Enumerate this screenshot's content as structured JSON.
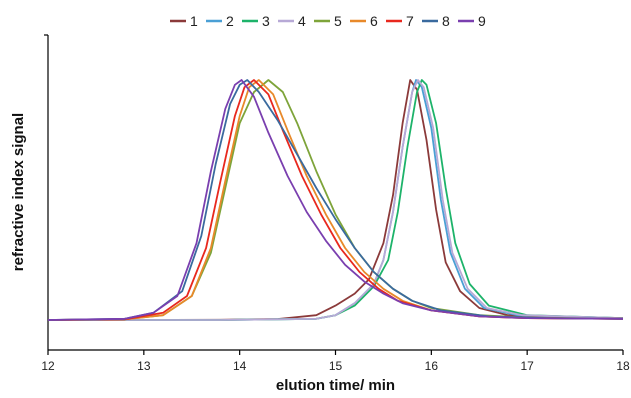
{
  "chart_data": {
    "type": "line",
    "title": "",
    "xlabel": "elution time/ min",
    "ylabel": "refractive index signal",
    "xlim": [
      12,
      18
    ],
    "ylim": [
      0,
      1.1
    ],
    "x_ticks": [
      "12",
      "13",
      "14",
      "15",
      "16",
      "17",
      "18"
    ],
    "y_tick_labels": false,
    "grid": false,
    "legend": {
      "placement": "top-center",
      "orientation": "horizontal"
    },
    "series": [
      {
        "name": "1",
        "color": "#8B3A3A",
        "points": [
          [
            12,
            0
          ],
          [
            12.8,
            0
          ],
          [
            13.8,
            0.001
          ],
          [
            14.4,
            0.004
          ],
          [
            14.8,
            0.02
          ],
          [
            15.0,
            0.06
          ],
          [
            15.2,
            0.11
          ],
          [
            15.35,
            0.17
          ],
          [
            15.5,
            0.32
          ],
          [
            15.6,
            0.52
          ],
          [
            15.7,
            0.82
          ],
          [
            15.78,
            1.0
          ],
          [
            15.85,
            0.96
          ],
          [
            15.95,
            0.75
          ],
          [
            16.05,
            0.46
          ],
          [
            16.15,
            0.24
          ],
          [
            16.3,
            0.12
          ],
          [
            16.5,
            0.05
          ],
          [
            16.8,
            0.02
          ],
          [
            17.2,
            0.01
          ],
          [
            18,
            0.008
          ]
        ]
      },
      {
        "name": "2",
        "color": "#4A9FD5",
        "points": [
          [
            12,
            0
          ],
          [
            13.8,
            0
          ],
          [
            14.8,
            0.005
          ],
          [
            15.0,
            0.02
          ],
          [
            15.2,
            0.07
          ],
          [
            15.4,
            0.15
          ],
          [
            15.5,
            0.25
          ],
          [
            15.6,
            0.45
          ],
          [
            15.7,
            0.72
          ],
          [
            15.8,
            0.95
          ],
          [
            15.84,
            1.0
          ],
          [
            15.9,
            0.97
          ],
          [
            16.0,
            0.8
          ],
          [
            16.1,
            0.5
          ],
          [
            16.2,
            0.28
          ],
          [
            16.35,
            0.13
          ],
          [
            16.55,
            0.05
          ],
          [
            16.9,
            0.02
          ],
          [
            18,
            0.008
          ]
        ]
      },
      {
        "name": "3",
        "color": "#1DB36A",
        "points": [
          [
            12,
            0
          ],
          [
            13.8,
            0
          ],
          [
            14.8,
            0.005
          ],
          [
            15.0,
            0.02
          ],
          [
            15.2,
            0.06
          ],
          [
            15.4,
            0.14
          ],
          [
            15.55,
            0.25
          ],
          [
            15.65,
            0.45
          ],
          [
            15.75,
            0.72
          ],
          [
            15.85,
            0.95
          ],
          [
            15.9,
            1.0
          ],
          [
            15.95,
            0.98
          ],
          [
            16.05,
            0.82
          ],
          [
            16.15,
            0.55
          ],
          [
            16.25,
            0.32
          ],
          [
            16.4,
            0.15
          ],
          [
            16.6,
            0.06
          ],
          [
            17.0,
            0.02
          ],
          [
            18,
            0.008
          ]
        ]
      },
      {
        "name": "4",
        "color": "#B7A9D6",
        "points": [
          [
            12,
            0
          ],
          [
            13.8,
            0
          ],
          [
            14.8,
            0.005
          ],
          [
            15.0,
            0.02
          ],
          [
            15.2,
            0.07
          ],
          [
            15.4,
            0.15
          ],
          [
            15.5,
            0.25
          ],
          [
            15.6,
            0.45
          ],
          [
            15.7,
            0.72
          ],
          [
            15.8,
            0.95
          ],
          [
            15.86,
            1.0
          ],
          [
            15.92,
            0.97
          ],
          [
            16.02,
            0.8
          ],
          [
            16.12,
            0.5
          ],
          [
            16.22,
            0.28
          ],
          [
            16.38,
            0.13
          ],
          [
            16.58,
            0.05
          ],
          [
            16.95,
            0.02
          ],
          [
            18,
            0.008
          ]
        ]
      },
      {
        "name": "5",
        "color": "#7EA43A",
        "points": [
          [
            12,
            0
          ],
          [
            12.8,
            0.003
          ],
          [
            13.2,
            0.02
          ],
          [
            13.5,
            0.1
          ],
          [
            13.7,
            0.28
          ],
          [
            13.85,
            0.55
          ],
          [
            14.0,
            0.82
          ],
          [
            14.15,
            0.95
          ],
          [
            14.3,
            1.0
          ],
          [
            14.45,
            0.95
          ],
          [
            14.6,
            0.82
          ],
          [
            14.8,
            0.62
          ],
          [
            15.0,
            0.44
          ],
          [
            15.2,
            0.3
          ],
          [
            15.4,
            0.2
          ],
          [
            15.6,
            0.13
          ],
          [
            15.8,
            0.08
          ],
          [
            16.0,
            0.05
          ],
          [
            16.5,
            0.02
          ],
          [
            17,
            0.01
          ],
          [
            18,
            0.005
          ]
        ]
      },
      {
        "name": "6",
        "color": "#E8892A",
        "points": [
          [
            12,
            0
          ],
          [
            12.8,
            0.003
          ],
          [
            13.2,
            0.02
          ],
          [
            13.5,
            0.1
          ],
          [
            13.7,
            0.3
          ],
          [
            13.85,
            0.58
          ],
          [
            14.0,
            0.85
          ],
          [
            14.1,
            0.97
          ],
          [
            14.2,
            1.0
          ],
          [
            14.35,
            0.94
          ],
          [
            14.5,
            0.79
          ],
          [
            14.7,
            0.6
          ],
          [
            14.9,
            0.44
          ],
          [
            15.1,
            0.3
          ],
          [
            15.3,
            0.2
          ],
          [
            15.5,
            0.13
          ],
          [
            15.7,
            0.08
          ],
          [
            16.0,
            0.04
          ],
          [
            16.5,
            0.015
          ],
          [
            17,
            0.008
          ],
          [
            18,
            0.005
          ]
        ]
      },
      {
        "name": "7",
        "color": "#E8281E",
        "points": [
          [
            12,
            0
          ],
          [
            12.8,
            0.003
          ],
          [
            13.2,
            0.03
          ],
          [
            13.45,
            0.1
          ],
          [
            13.65,
            0.3
          ],
          [
            13.8,
            0.58
          ],
          [
            13.95,
            0.85
          ],
          [
            14.05,
            0.97
          ],
          [
            14.15,
            1.0
          ],
          [
            14.3,
            0.94
          ],
          [
            14.45,
            0.79
          ],
          [
            14.65,
            0.6
          ],
          [
            14.85,
            0.44
          ],
          [
            15.05,
            0.3
          ],
          [
            15.25,
            0.2
          ],
          [
            15.45,
            0.13
          ],
          [
            15.65,
            0.08
          ],
          [
            16.0,
            0.04
          ],
          [
            16.5,
            0.015
          ],
          [
            17,
            0.008
          ],
          [
            18,
            0.005
          ]
        ]
      },
      {
        "name": "8",
        "color": "#3A6A9E",
        "points": [
          [
            12,
            0
          ],
          [
            12.8,
            0.005
          ],
          [
            13.1,
            0.03
          ],
          [
            13.4,
            0.12
          ],
          [
            13.6,
            0.35
          ],
          [
            13.75,
            0.65
          ],
          [
            13.9,
            0.9
          ],
          [
            14.0,
            0.98
          ],
          [
            14.08,
            1.0
          ],
          [
            14.2,
            0.95
          ],
          [
            14.4,
            0.83
          ],
          [
            14.6,
            0.69
          ],
          [
            14.8,
            0.55
          ],
          [
            15.0,
            0.42
          ],
          [
            15.2,
            0.3
          ],
          [
            15.4,
            0.2
          ],
          [
            15.6,
            0.13
          ],
          [
            15.8,
            0.08
          ],
          [
            16.1,
            0.04
          ],
          [
            16.6,
            0.015
          ],
          [
            17.2,
            0.008
          ],
          [
            18,
            0.005
          ]
        ]
      },
      {
        "name": "9",
        "color": "#7A3FAF",
        "points": [
          [
            12,
            0
          ],
          [
            12.8,
            0.005
          ],
          [
            13.1,
            0.03
          ],
          [
            13.35,
            0.1
          ],
          [
            13.55,
            0.32
          ],
          [
            13.7,
            0.62
          ],
          [
            13.85,
            0.88
          ],
          [
            13.95,
            0.98
          ],
          [
            14.02,
            1.0
          ],
          [
            14.15,
            0.93
          ],
          [
            14.3,
            0.78
          ],
          [
            14.5,
            0.6
          ],
          [
            14.7,
            0.45
          ],
          [
            14.9,
            0.33
          ],
          [
            15.1,
            0.23
          ],
          [
            15.3,
            0.16
          ],
          [
            15.5,
            0.11
          ],
          [
            15.7,
            0.07
          ],
          [
            16.0,
            0.04
          ],
          [
            16.5,
            0.015
          ],
          [
            17,
            0.008
          ],
          [
            18,
            0.005
          ]
        ]
      }
    ]
  }
}
